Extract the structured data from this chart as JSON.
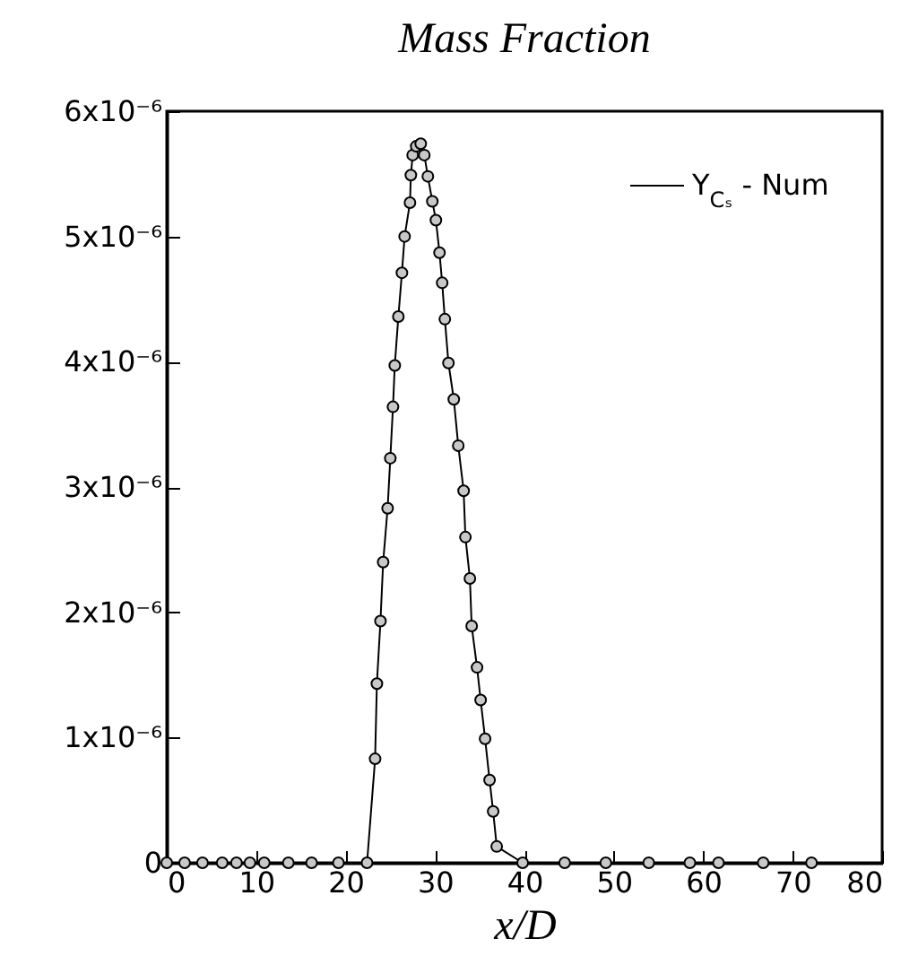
{
  "chart_data": {
    "type": "line",
    "title": "Mass Fraction",
    "xlabel": "x/D",
    "xlim": [
      0,
      80
    ],
    "xticks": [
      0,
      10,
      20,
      30,
      40,
      50,
      60,
      70,
      80
    ],
    "ylim": [
      0,
      6e-06
    ],
    "yticks": [
      0,
      {
        "value": 1e-06,
        "label": "1x10⁻⁶"
      },
      {
        "value": 2e-06,
        "label": "2x10⁻⁶"
      },
      {
        "value": 3e-06,
        "label": "3x10⁻⁶"
      },
      {
        "value": 4e-06,
        "label": "4x10⁻⁶"
      },
      {
        "value": 5e-06,
        "label": "5x10⁻⁶"
      },
      {
        "value": 6e-06,
        "label": "6x10⁻⁶"
      }
    ],
    "grid": false,
    "legend": "top right",
    "marker": "circle",
    "line_style": "solid",
    "series": [
      {
        "name": "Y$_{Cₛ}$ - Num",
        "color": "#000000",
        "x": [
          0,
          2,
          4,
          6.2,
          7.8,
          9.3,
          10.9,
          13.6,
          16.2,
          19.2,
          22.4,
          23.3,
          23.5,
          23.9,
          24.2,
          24.7,
          25.0,
          25.3,
          25.5,
          25.9,
          26.3,
          26.6,
          27.2,
          27.3,
          27.5,
          27.9,
          28.4,
          28.8,
          29.2,
          29.7,
          30.1,
          30.5,
          30.8,
          31.1,
          31.5,
          32.1,
          32.6,
          33.2,
          33.4,
          33.9,
          34.1,
          34.7,
          35.1,
          35.6,
          36.1,
          36.5,
          36.9,
          39.8,
          44.5,
          49.1,
          53.9,
          58.5,
          61.7,
          66.7,
          72.1
        ],
        "values": [
          0,
          0,
          0,
          0,
          0,
          0,
          0,
          0,
          0,
          0,
          0,
          8.3e-07,
          1.43e-06,
          1.93e-06,
          2.4e-06,
          2.83e-06,
          3.23e-06,
          3.64e-06,
          3.97e-06,
          4.36e-06,
          4.71e-06,
          5e-06,
          5.27e-06,
          5.49e-06,
          5.65e-06,
          5.72e-06,
          5.74e-06,
          5.65e-06,
          5.48e-06,
          5.28e-06,
          5.13e-06,
          4.87e-06,
          4.63e-06,
          4.34e-06,
          3.99e-06,
          3.7e-06,
          3.33e-06,
          2.97e-06,
          2.6e-06,
          2.27e-06,
          1.89e-06,
          1.56e-06,
          1.3e-06,
          9.9e-07,
          6.6e-07,
          4.1e-07,
          1.3e-07,
          0,
          0,
          0,
          0,
          0,
          0,
          0,
          0
        ]
      }
    ]
  }
}
